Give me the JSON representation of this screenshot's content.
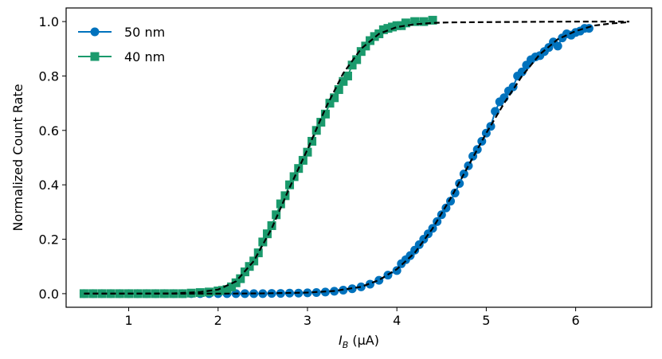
{
  "chart_data": {
    "type": "scatter",
    "xlabel_main": "I",
    "xlabel_sub": "B",
    "xlabel_unit": " (μA)",
    "ylabel": "Normalized Count Rate",
    "xlim": [
      0.3,
      6.85
    ],
    "ylim": [
      -0.05,
      1.05
    ],
    "xticks": [
      1,
      2,
      3,
      4,
      5,
      6
    ],
    "xtick_labels": [
      "1",
      "2",
      "3",
      "4",
      "5",
      "6"
    ],
    "yticks": [
      0.0,
      0.2,
      0.4,
      0.6,
      0.8,
      1.0
    ],
    "ytick_labels": [
      "0.0",
      "0.2",
      "0.4",
      "0.6",
      "0.8",
      "1.0"
    ],
    "grid": false,
    "legend_position": "top-left",
    "series": [
      {
        "name": "50 nm",
        "marker": "circle",
        "color": "#0072BD",
        "x": [
          0.5,
          0.6,
          0.7,
          0.8,
          0.9,
          1.0,
          1.1,
          1.2,
          1.3,
          1.4,
          1.5,
          1.6,
          1.7,
          1.8,
          1.9,
          2.0,
          2.1,
          2.2,
          2.3,
          2.4,
          2.5,
          2.6,
          2.7,
          2.8,
          2.9,
          3.0,
          3.1,
          3.2,
          3.3,
          3.4,
          3.5,
          3.6,
          3.7,
          3.8,
          3.9,
          4.0,
          4.05,
          4.1,
          4.15,
          4.2,
          4.25,
          4.3,
          4.35,
          4.4,
          4.45,
          4.5,
          4.55,
          4.6,
          4.65,
          4.7,
          4.75,
          4.8,
          4.85,
          4.9,
          4.95,
          5.0,
          5.05,
          5.1,
          5.15,
          5.2,
          5.25,
          5.3,
          5.35,
          5.4,
          5.45,
          5.5,
          5.55,
          5.6,
          5.65,
          5.7,
          5.75,
          5.8,
          5.85,
          5.9,
          5.95,
          6.0,
          6.05,
          6.1,
          6.15
        ],
        "y": [
          0.0,
          0.0,
          0.0,
          0.0,
          0.0,
          0.0,
          0.0,
          0.0,
          0.0,
          0.0,
          0.0,
          0.0,
          0.0,
          0.0,
          0.0,
          0.0,
          0.0,
          0.0,
          0.0,
          0.0,
          0.0,
          0.001,
          0.001,
          0.002,
          0.002,
          0.003,
          0.004,
          0.006,
          0.009,
          0.013,
          0.018,
          0.025,
          0.035,
          0.049,
          0.068,
          0.085,
          0.11,
          0.125,
          0.14,
          0.16,
          0.18,
          0.2,
          0.22,
          0.24,
          0.265,
          0.29,
          0.315,
          0.34,
          0.37,
          0.405,
          0.44,
          0.47,
          0.505,
          0.53,
          0.56,
          0.59,
          0.615,
          0.67,
          0.705,
          0.72,
          0.745,
          0.76,
          0.8,
          0.815,
          0.84,
          0.86,
          0.87,
          0.875,
          0.89,
          0.905,
          0.925,
          0.91,
          0.94,
          0.955,
          0.95,
          0.96,
          0.965,
          0.975,
          0.975
        ]
      },
      {
        "name": "40 nm",
        "marker": "square",
        "color": "#1A9A6C",
        "x": [
          0.5,
          0.6,
          0.7,
          0.8,
          0.9,
          1.0,
          1.1,
          1.2,
          1.3,
          1.4,
          1.5,
          1.6,
          1.7,
          1.8,
          1.9,
          2.0,
          2.05,
          2.1,
          2.15,
          2.2,
          2.25,
          2.3,
          2.35,
          2.4,
          2.45,
          2.5,
          2.55,
          2.6,
          2.65,
          2.7,
          2.75,
          2.8,
          2.85,
          2.9,
          2.95,
          3.0,
          3.05,
          3.1,
          3.15,
          3.2,
          3.25,
          3.3,
          3.35,
          3.4,
          3.45,
          3.5,
          3.55,
          3.6,
          3.65,
          3.7,
          3.75,
          3.8,
          3.85,
          3.9,
          3.95,
          4.0,
          4.05,
          4.1,
          4.2,
          4.3,
          4.4
        ],
        "y": [
          0.0,
          0.0,
          0.0,
          0.0,
          0.0,
          0.0,
          0.0,
          0.0,
          0.0,
          0.0,
          0.0,
          0.0,
          0.002,
          0.004,
          0.006,
          0.01,
          0.012,
          0.015,
          0.025,
          0.04,
          0.055,
          0.08,
          0.1,
          0.12,
          0.15,
          0.19,
          0.22,
          0.25,
          0.29,
          0.33,
          0.36,
          0.4,
          0.43,
          0.46,
          0.49,
          0.52,
          0.56,
          0.6,
          0.63,
          0.66,
          0.7,
          0.72,
          0.75,
          0.78,
          0.8,
          0.84,
          0.86,
          0.89,
          0.91,
          0.93,
          0.945,
          0.955,
          0.97,
          0.975,
          0.98,
          0.985,
          0.985,
          0.995,
          1.0,
          1.0,
          1.005
        ]
      },
      {
        "name": "",
        "style": "dashed",
        "color": "#000000",
        "x": [
          0.5,
          1.0,
          1.5,
          1.8,
          2.0,
          2.2,
          2.4,
          2.6,
          2.8,
          3.0,
          3.2,
          3.4,
          3.6,
          3.8,
          4.0,
          4.2,
          4.4,
          4.6,
          5.0,
          5.5,
          6.0,
          6.6
        ],
        "y": [
          0.0,
          0.0,
          0.001,
          0.006,
          0.015,
          0.045,
          0.12,
          0.24,
          0.39,
          0.53,
          0.68,
          0.81,
          0.9,
          0.955,
          0.98,
          0.99,
          0.995,
          0.997,
          0.998,
          0.999,
          1.0,
          1.0
        ]
      },
      {
        "name": "",
        "style": "dashed",
        "color": "#000000",
        "x": [
          0.5,
          1.0,
          2.0,
          2.5,
          3.0,
          3.3,
          3.6,
          3.8,
          4.0,
          4.2,
          4.4,
          4.6,
          4.8,
          5.0,
          5.2,
          5.4,
          5.6,
          5.8,
          6.0,
          6.2,
          6.4,
          6.6
        ],
        "y": [
          0.0,
          0.0,
          0.0,
          0.001,
          0.004,
          0.01,
          0.025,
          0.05,
          0.09,
          0.15,
          0.24,
          0.35,
          0.47,
          0.59,
          0.7,
          0.8,
          0.88,
          0.935,
          0.965,
          0.985,
          0.993,
          0.998
        ]
      }
    ]
  }
}
